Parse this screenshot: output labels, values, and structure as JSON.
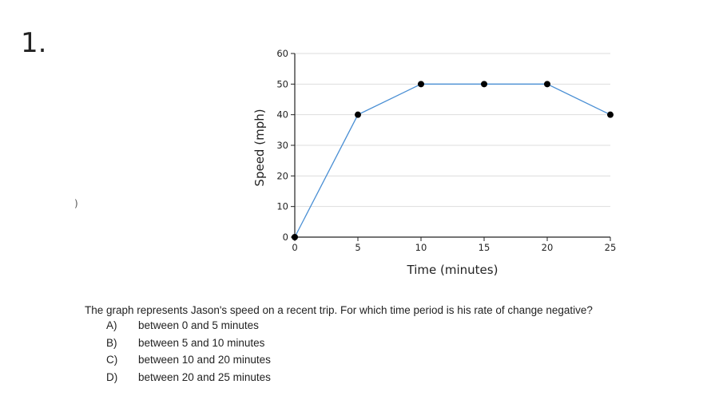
{
  "question_number": "1.",
  "stray_mark": ")",
  "chart_data": {
    "type": "line",
    "x": [
      0,
      5,
      10,
      15,
      20,
      25
    ],
    "series": [
      {
        "values": [
          0,
          40,
          50,
          50,
          50,
          40
        ]
      }
    ],
    "xlabel": "Time (minutes)",
    "ylabel": "Speed (mph)",
    "xlim": [
      0,
      25
    ],
    "ylim": [
      0,
      60
    ],
    "xticks": [
      "0",
      "5",
      "10",
      "15",
      "20",
      "25"
    ],
    "yticks": [
      "0",
      "10",
      "20",
      "30",
      "40",
      "50",
      "60"
    ],
    "grid": true,
    "line_color": "#4a8fd4",
    "marker_color": "#000000",
    "grid_color": "#dddddd"
  },
  "question_text": "The graph represents Jason's speed on a recent trip. For which time period is his rate of change negative?",
  "options": [
    {
      "letter": "A)",
      "text": "between 0 and 5 minutes"
    },
    {
      "letter": "B)",
      "text": "between 5 and 10 minutes"
    },
    {
      "letter": "C)",
      "text": "between 10 and 20 minutes"
    },
    {
      "letter": "D)",
      "text": "between 20 and 25 minutes"
    }
  ]
}
